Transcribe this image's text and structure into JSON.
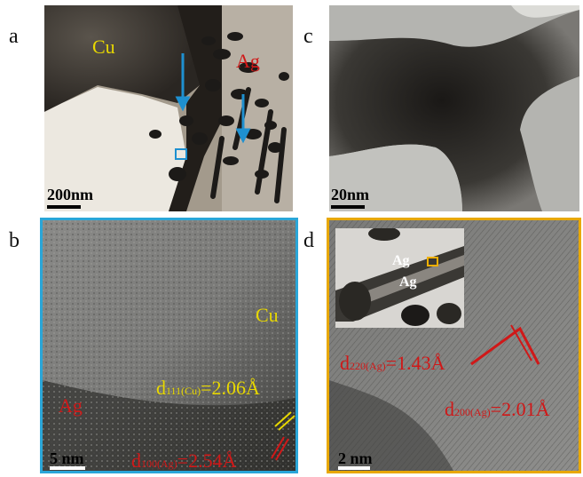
{
  "panels": {
    "a": {
      "letter": "a",
      "labels": {
        "cu": "Cu",
        "ag": "Ag"
      },
      "scale_bar": "200nm"
    },
    "b": {
      "letter": "b",
      "labels": {
        "cu": "Cu",
        "ag": "Ag"
      },
      "d_cu": {
        "d": "d",
        "sub": "111(Cu)",
        "val": "=2.06Å"
      },
      "d_ag": {
        "d": "d",
        "sub": "100(Ag)",
        "val": "=2.54Å"
      },
      "scale_bar": "5 nm"
    },
    "c": {
      "letter": "c",
      "scale_bar": "20nm"
    },
    "d": {
      "letter": "d",
      "inset_labels": {
        "ag_top": "Ag",
        "ag_bottom": "Ag"
      },
      "d_220": {
        "d": "d",
        "sub": "220(Ag)",
        "val": "=1.43Å"
      },
      "d_200": {
        "d": "d",
        "sub": "200(Ag)",
        "val": "=2.01Å"
      },
      "scale_bar": "2 nm"
    }
  },
  "colors": {
    "cu_label": "#e8d800",
    "ag_label": "#d01818",
    "arrow": "#1e90d0",
    "frame_b": "#2aa6d8",
    "frame_d": "#e8a800",
    "inset_box": "#f0b000"
  }
}
